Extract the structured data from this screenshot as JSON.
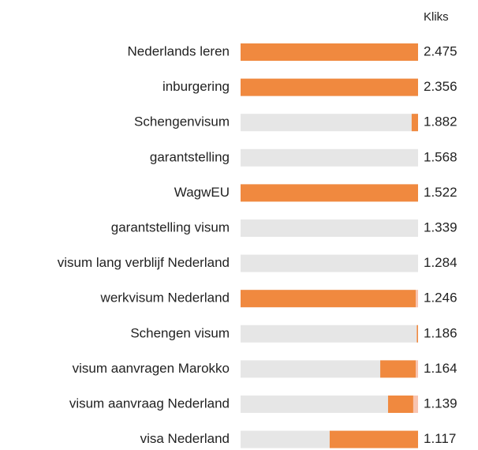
{
  "table": {
    "header": "Kliks",
    "rows": [
      {
        "label": "Nederlands leren",
        "clicks": "2.475",
        "orange": [
          0,
          100
        ]
      },
      {
        "label": "inburgering",
        "clicks": "2.356",
        "orange": [
          0,
          100
        ]
      },
      {
        "label": "Schengenvisum",
        "clicks": "1.882",
        "orange": [
          96.4,
          100
        ]
      },
      {
        "label": "garantstelling",
        "clicks": "1.568"
      },
      {
        "label": "WagwEU",
        "clicks": "1.522",
        "orange": [
          0,
          100
        ]
      },
      {
        "label": "garantstelling visum",
        "clicks": "1.339"
      },
      {
        "label": "visum lang verblijf Nederland",
        "clicks": "1.284"
      },
      {
        "label": "werkvisum Nederland",
        "clicks": "1.246",
        "orange": [
          0,
          98.7
        ],
        "pink": [
          98.7,
          100
        ]
      },
      {
        "label": "Schengen visum",
        "clicks": "1.186",
        "orange": [
          99.3,
          100
        ]
      },
      {
        "label": "visum aanvragen Marokko",
        "clicks": "1.164",
        "orange": [
          78.7,
          98.7
        ],
        "pink": [
          98.7,
          100
        ]
      },
      {
        "label": "visum aanvraag Nederland",
        "clicks": "1.139",
        "orange": [
          83.1,
          97.3
        ],
        "pink": [
          97.3,
          100
        ]
      },
      {
        "label": "visa Nederland",
        "clicks": "1.117",
        "orange": [
          50.2,
          100
        ]
      }
    ]
  }
}
